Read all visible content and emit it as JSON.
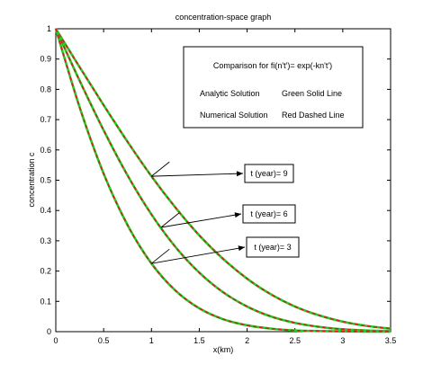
{
  "chart_data": {
    "type": "line",
    "title": "concentration-space graph",
    "xlabel": "x(km)",
    "ylabel": "concentration c",
    "xlim": [
      0,
      3.5
    ],
    "ylim": [
      0,
      1
    ],
    "xticks": [
      "0",
      "0.5",
      "1",
      "1.5",
      "2",
      "2.5",
      "3",
      "3.5"
    ],
    "yticks": [
      "0",
      "0.1",
      "0.2",
      "0.3",
      "0.4",
      "0.5",
      "0.6",
      "0.7",
      "0.8",
      "0.9",
      "1"
    ],
    "grid": false,
    "legend_box": {
      "title": "Comparison for fi(n't')= exp(-kn't')",
      "rows": [
        {
          "method": "Analytic Solution",
          "style": "Green Solid Line"
        },
        {
          "method": "Numerical Solution",
          "style": "Red Dashed Line"
        }
      ]
    },
    "colors": {
      "analytic": "#22cc22",
      "numerical": "#cc2222"
    },
    "x": [
      0,
      0.25,
      0.5,
      0.75,
      1.0,
      1.25,
      1.5,
      1.75,
      2.0,
      2.25,
      2.5,
      2.75,
      3.0,
      3.25,
      3.5
    ],
    "series": [
      {
        "annotation": "t (year)= 9",
        "values": [
          1.0,
          0.873,
          0.748,
          0.627,
          0.513,
          0.41,
          0.318,
          0.24,
          0.175,
          0.123,
          0.083,
          0.054,
          0.033,
          0.019,
          0.01
        ]
      },
      {
        "annotation": "t (year)= 6",
        "values": [
          1.0,
          0.828,
          0.665,
          0.516,
          0.387,
          0.28,
          0.195,
          0.13,
          0.083,
          0.05,
          0.029,
          0.016,
          0.008,
          0.004,
          0.002
        ]
      },
      {
        "annotation": "t (year)= 3",
        "values": [
          1.0,
          0.74,
          0.522,
          0.352,
          0.225,
          0.136,
          0.077,
          0.041,
          0.021,
          0.01,
          0.004,
          0.002,
          0.001,
          0.0003,
          0.0001
        ]
      }
    ],
    "annotations": [
      {
        "text": "t (year)= 9",
        "target_x": 1.0,
        "series_index": 0
      },
      {
        "text": "t (year)= 6",
        "target_x": 1.1,
        "series_index": 1
      },
      {
        "text": "t (year)= 3",
        "target_x": 1.0,
        "series_index": 2
      }
    ]
  }
}
